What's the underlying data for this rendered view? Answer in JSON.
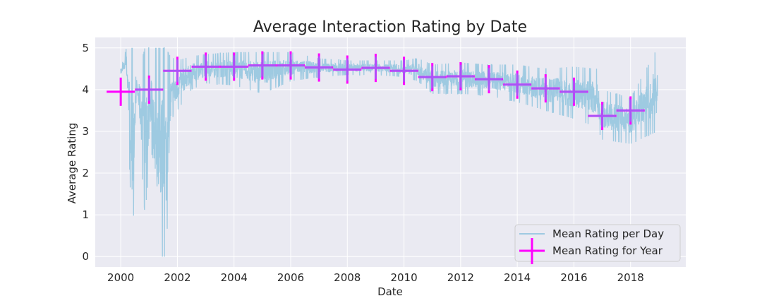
{
  "chart_data": {
    "type": "line",
    "title": "Average Interaction Rating by Date",
    "xlabel": "Date",
    "ylabel": "Average Rating",
    "xlim": [
      1999.1,
      2019.95
    ],
    "ylim": [
      -0.25,
      5.25
    ],
    "x_ticks": [
      2000,
      2002,
      2004,
      2006,
      2008,
      2010,
      2012,
      2014,
      2016,
      2018
    ],
    "y_ticks": [
      0,
      1,
      2,
      3,
      4,
      5
    ],
    "grid": true,
    "legend": {
      "placement": "lower right",
      "entries": [
        "Mean Rating per Day",
        "Mean Rating for Year"
      ]
    },
    "colors": {
      "daily": "#9ecae1",
      "yearly_cross": "#ff00ff",
      "yearly_mean": "#a855f7",
      "background": "#eaeaf2",
      "grid": "#ffffff"
    },
    "series": [
      {
        "name": "Mean Rating per Day",
        "style": "line",
        "envelope": [
          {
            "x": 2000.0,
            "low": 4.3,
            "high": 4.5
          },
          {
            "x": 2000.2,
            "low": 4.3,
            "high": 5.0
          },
          {
            "x": 2000.42,
            "low": 0.0,
            "high": 5.0
          },
          {
            "x": 2000.55,
            "low": 4.0,
            "high": 4.2
          },
          {
            "x": 2000.85,
            "low": 1.0,
            "high": 5.0
          },
          {
            "x": 2001.0,
            "low": 2.0,
            "high": 5.0
          },
          {
            "x": 2001.2,
            "low": 1.0,
            "high": 5.0
          },
          {
            "x": 2001.45,
            "low": 0.0,
            "high": 5.0
          },
          {
            "x": 2001.6,
            "low": 0.0,
            "high": 5.0
          },
          {
            "x": 2001.75,
            "low": 2.5,
            "high": 4.8
          },
          {
            "x": 2002.0,
            "low": 3.5,
            "high": 4.7
          },
          {
            "x": 2002.5,
            "low": 4.0,
            "high": 4.8
          },
          {
            "x": 2003.0,
            "low": 4.15,
            "high": 4.85
          },
          {
            "x": 2004.0,
            "low": 4.1,
            "high": 4.9
          },
          {
            "x": 2005.0,
            "low": 3.9,
            "high": 4.9
          },
          {
            "x": 2006.0,
            "low": 4.2,
            "high": 4.9
          },
          {
            "x": 2007.0,
            "low": 4.3,
            "high": 4.75
          },
          {
            "x": 2008.0,
            "low": 4.35,
            "high": 4.7
          },
          {
            "x": 2009.0,
            "low": 4.35,
            "high": 4.7
          },
          {
            "x": 2010.0,
            "low": 4.3,
            "high": 4.7
          },
          {
            "x": 2010.5,
            "low": 4.2,
            "high": 4.75
          },
          {
            "x": 2011.0,
            "low": 3.9,
            "high": 4.6
          },
          {
            "x": 2012.0,
            "low": 3.9,
            "high": 4.65
          },
          {
            "x": 2013.0,
            "low": 3.85,
            "high": 4.6
          },
          {
            "x": 2014.0,
            "low": 3.7,
            "high": 4.6
          },
          {
            "x": 2015.0,
            "low": 3.5,
            "high": 4.5
          },
          {
            "x": 2016.0,
            "low": 3.3,
            "high": 4.55
          },
          {
            "x": 2016.8,
            "low": 3.1,
            "high": 4.5
          },
          {
            "x": 2017.0,
            "low": 2.8,
            "high": 4.0
          },
          {
            "x": 2018.0,
            "low": 2.7,
            "high": 3.8
          },
          {
            "x": 2018.95,
            "low": 3.0,
            "high": 5.0
          }
        ]
      },
      {
        "name": "Mean Rating for Year",
        "style": "cross",
        "points": [
          {
            "x": 2000,
            "y": 3.95
          },
          {
            "x": 2001,
            "y": 4.0
          },
          {
            "x": 2002,
            "y": 4.45
          },
          {
            "x": 2003,
            "y": 4.55
          },
          {
            "x": 2004,
            "y": 4.55
          },
          {
            "x": 2005,
            "y": 4.58
          },
          {
            "x": 2006,
            "y": 4.58
          },
          {
            "x": 2007,
            "y": 4.53
          },
          {
            "x": 2008,
            "y": 4.48
          },
          {
            "x": 2009,
            "y": 4.52
          },
          {
            "x": 2010,
            "y": 4.45
          },
          {
            "x": 2011,
            "y": 4.3
          },
          {
            "x": 2012,
            "y": 4.32
          },
          {
            "x": 2013,
            "y": 4.25
          },
          {
            "x": 2014,
            "y": 4.12
          },
          {
            "x": 2015,
            "y": 4.03
          },
          {
            "x": 2016,
            "y": 3.95
          },
          {
            "x": 2017,
            "y": 3.37
          },
          {
            "x": 2018,
            "y": 3.5
          }
        ]
      }
    ]
  }
}
